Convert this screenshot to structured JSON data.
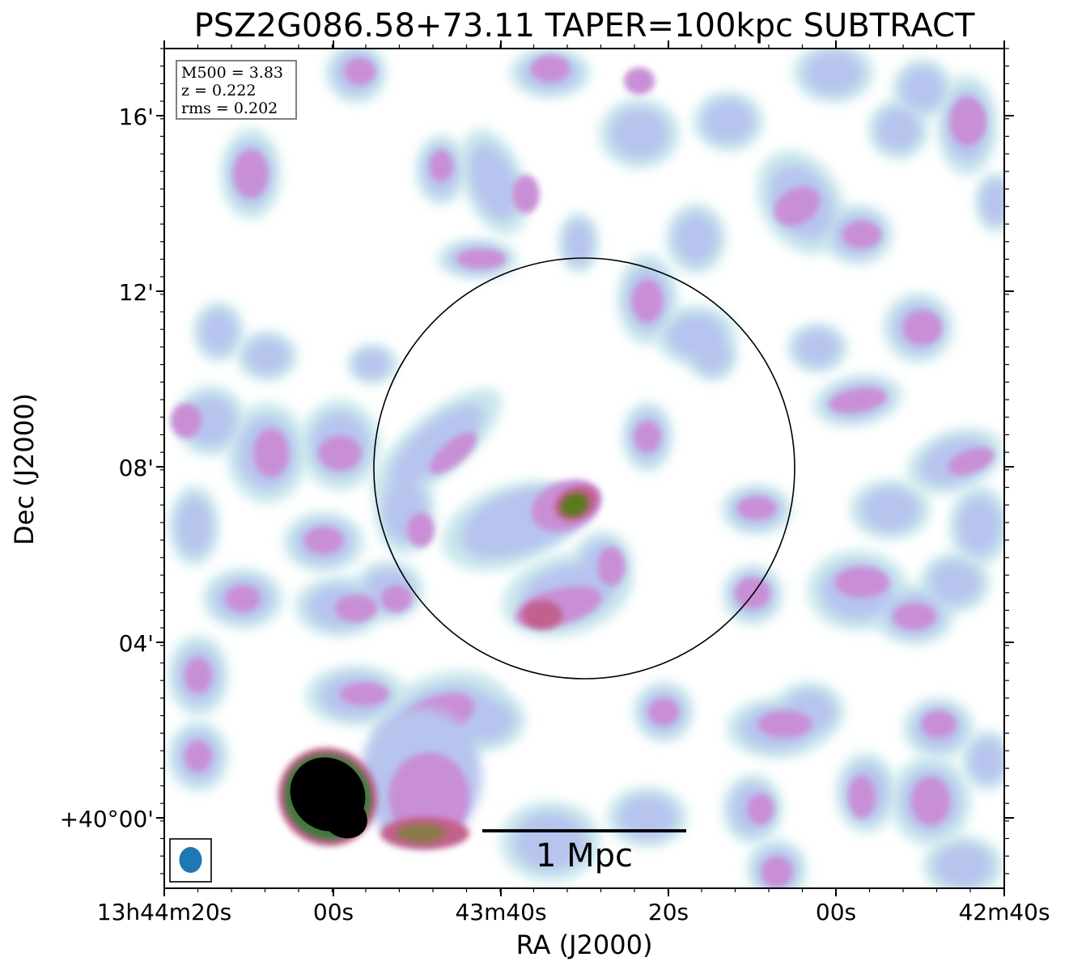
{
  "title": "PSZ2G086.58+73.11 TAPER=100kpc SUBTRACT",
  "axes": {
    "x_label": "RA (J2000)",
    "y_label": "Dec (J2000)",
    "x_ticks": [
      "13h44m20s",
      "00s",
      "43m40s",
      "20s",
      "00s",
      "42m40s"
    ],
    "y_ticks": [
      "16'",
      "12'",
      "08'",
      "04'",
      "+40°00'"
    ]
  },
  "info": {
    "m500": "M500 = 3.83",
    "z": "z = 0.222",
    "rms": "rms = 0.202"
  },
  "scalebar": {
    "label": "1 Mpc"
  },
  "colors": {
    "background": "#ffffff",
    "faint_emission": "#c9e7ec",
    "low_emission": "#b7c4ee",
    "mid_emission": "#c98fd6",
    "high_emission": "#c2608e",
    "peak_emission": "#5a7a1c",
    "saturated": "#000000",
    "beam": "#1f77b4",
    "circle": "#000000"
  }
}
